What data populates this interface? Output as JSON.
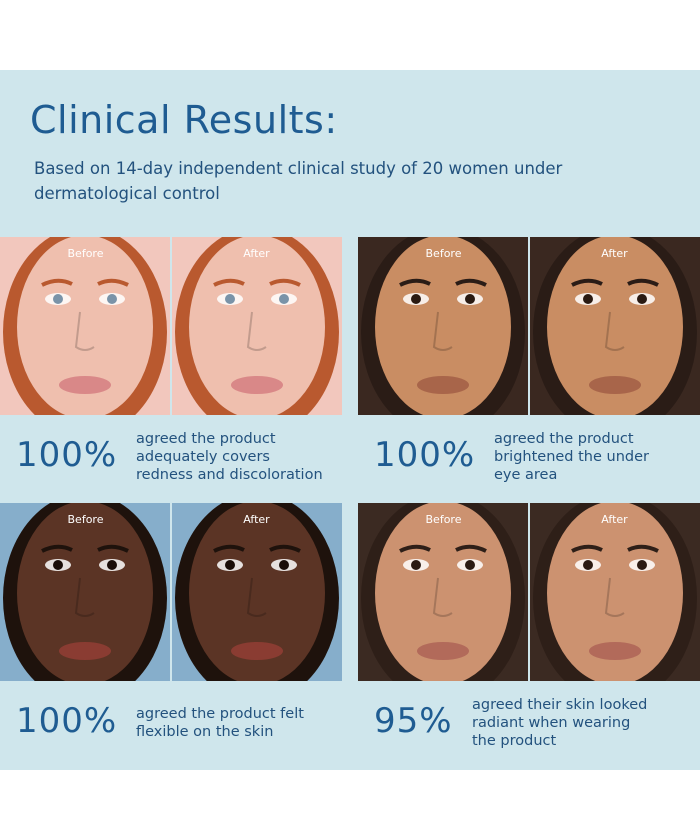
{
  "header": {
    "title": "Clinical Results:",
    "subtitle": "Based on 14-day independent clinical study of 20 women under dermatological control"
  },
  "results": [
    {
      "before": "Before",
      "after": "After",
      "stat": "100%",
      "description": [
        "agreed the product",
        "adequately covers",
        "redness and discoloration"
      ]
    },
    {
      "before": "Before",
      "after": "After",
      "stat": "100%",
      "description": [
        "agreed the product",
        "brightened the under",
        "eye area"
      ]
    },
    {
      "before": "Before",
      "after": "After",
      "stat": "100%",
      "description": [
        "agreed the product felt",
        "flexible on the skin"
      ]
    },
    {
      "before": "Before",
      "after": "After",
      "stat": "95%",
      "description": [
        "agreed their skin looked",
        "radiant when wearing",
        "the product"
      ]
    }
  ]
}
